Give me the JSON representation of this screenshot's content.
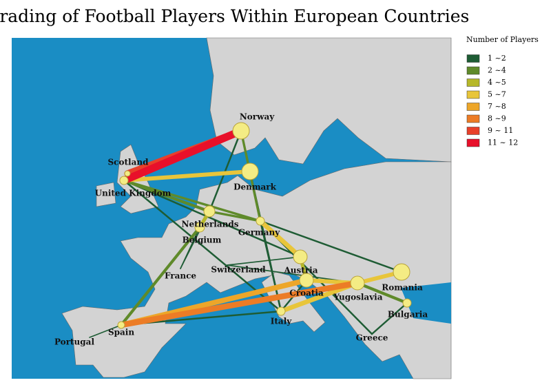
{
  "chart_data": {
    "type": "network-map",
    "title": "Trading of Football Players Within European Countries",
    "legend": {
      "title": "Number of Players",
      "items": [
        {
          "label": "1 ~2",
          "range": [
            1,
            2
          ],
          "color": "#1e5c34"
        },
        {
          "label": "2 ~4",
          "range": [
            2,
            4
          ],
          "color": "#5f8a2a"
        },
        {
          "label": "4 ~5",
          "range": [
            4,
            5
          ],
          "color": "#b6b829"
        },
        {
          "label": "5 ~7",
          "range": [
            5,
            7
          ],
          "color": "#e8c53a"
        },
        {
          "label": "7 ~8",
          "range": [
            7,
            8
          ],
          "color": "#eda629"
        },
        {
          "label": "8 ~9",
          "range": [
            8,
            9
          ],
          "color": "#ec7c26"
        },
        {
          "label": "9 ~ 11",
          "range": [
            9,
            11
          ],
          "color": "#e8402a"
        },
        {
          "label": "11 ~ 12",
          "range": [
            11,
            12
          ],
          "color": "#e8102a"
        }
      ]
    },
    "nodes": [
      "Norway",
      "Scotland",
      "United Kingdom",
      "Denmark",
      "Netherlands",
      "Belgium",
      "Germany",
      "France",
      "Switzerland",
      "Austria",
      "Croatia",
      "Yugoslavia",
      "Romania",
      "Bulgaria",
      "Italy",
      "Greece",
      "Spain",
      "Portugal"
    ],
    "edges": [
      {
        "from": "United Kingdom",
        "to": "Norway",
        "players": 12
      },
      {
        "from": "Scotland",
        "to": "Norway",
        "players": 10
      },
      {
        "from": "United Kingdom",
        "to": "Denmark",
        "players": 6
      },
      {
        "from": "Spain",
        "to": "Yugoslavia",
        "players": 9
      },
      {
        "from": "Spain",
        "to": "Croatia",
        "players": 8
      },
      {
        "from": "Spain",
        "to": "Belgium",
        "players": 4
      },
      {
        "from": "Italy",
        "to": "Yugoslavia",
        "players": 7
      },
      {
        "from": "Yugoslavia",
        "to": "Romania",
        "players": 6
      },
      {
        "from": "Germany",
        "to": "Austria",
        "players": 7
      },
      {
        "from": "Norway",
        "to": "Germany",
        "players": 3
      },
      {
        "from": "Norway",
        "to": "Italy",
        "players": 2
      },
      {
        "from": "Norway",
        "to": "Netherlands",
        "players": 2
      },
      {
        "from": "United Kingdom",
        "to": "Netherlands",
        "players": 4
      },
      {
        "from": "United Kingdom",
        "to": "Germany",
        "players": 3
      },
      {
        "from": "United Kingdom",
        "to": "Italy",
        "players": 2
      },
      {
        "from": "United Kingdom",
        "to": "Austria",
        "players": 2
      },
      {
        "from": "Netherlands",
        "to": "Belgium",
        "players": 5
      },
      {
        "from": "Netherlands",
        "to": "Germany",
        "players": 3
      },
      {
        "from": "Germany",
        "to": "Romania",
        "players": 2
      },
      {
        "from": "Germany",
        "to": "Italy",
        "players": 2
      },
      {
        "from": "Austria",
        "to": "Croatia",
        "players": 5
      },
      {
        "from": "Croatia",
        "to": "Yugoslavia",
        "players": 6
      },
      {
        "from": "Yugoslavia",
        "to": "Bulgaria",
        "players": 4
      },
      {
        "from": "Germany",
        "to": "Greece",
        "players": 2
      },
      {
        "from": "Italy",
        "to": "Croatia",
        "players": 2
      },
      {
        "from": "Spain",
        "to": "Italy",
        "players": 2
      },
      {
        "from": "Portugal",
        "to": "Spain",
        "players": 1
      },
      {
        "from": "France",
        "to": "Netherlands",
        "players": 1
      },
      {
        "from": "Switzerland",
        "to": "Austria",
        "players": 1
      },
      {
        "from": "Bulgaria",
        "to": "Greece",
        "players": 2
      },
      {
        "from": "Belgium",
        "to": "France",
        "players": 1
      },
      {
        "from": "Switzerland",
        "to": "Yugoslavia",
        "players": 1
      }
    ]
  }
}
